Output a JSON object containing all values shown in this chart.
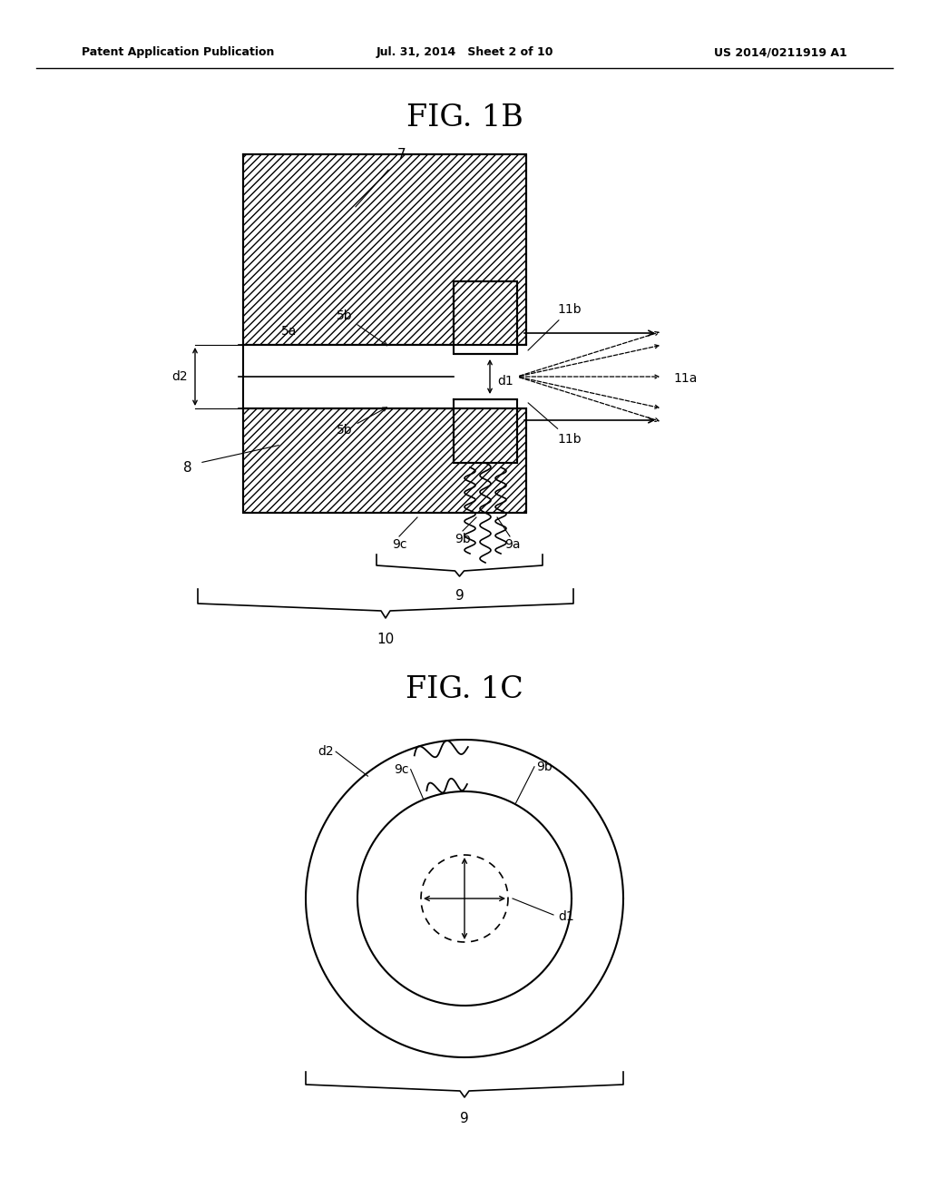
{
  "title_header_left": "Patent Application Publication",
  "title_header_mid": "Jul. 31, 2014   Sheet 2 of 10",
  "title_header_right": "US 2014/0211919 A1",
  "fig1b_title": "FIG. 1B",
  "fig1c_title": "FIG. 1C",
  "background_color": "#ffffff"
}
